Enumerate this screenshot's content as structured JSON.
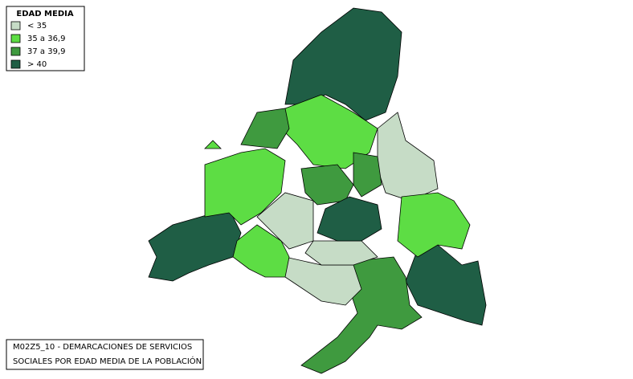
{
  "legend": {
    "title": "EDAD MEDIA",
    "items": [
      {
        "label": "< 35",
        "color": "#c6dcc6"
      },
      {
        "label": "35 a 36,9",
        "color": "#5ddd44"
      },
      {
        "label": "37 a 39,9",
        "color": "#3f9a3f"
      },
      {
        "label": "> 40",
        "color": "#1f5e45"
      }
    ]
  },
  "caption": {
    "lines": [
      "M02Z5_10 - DEMARCACIONES DE SERVICIOS",
      "SOCIALES POR EDAD MEDIA DE LA POBLACIÓN"
    ]
  }
}
